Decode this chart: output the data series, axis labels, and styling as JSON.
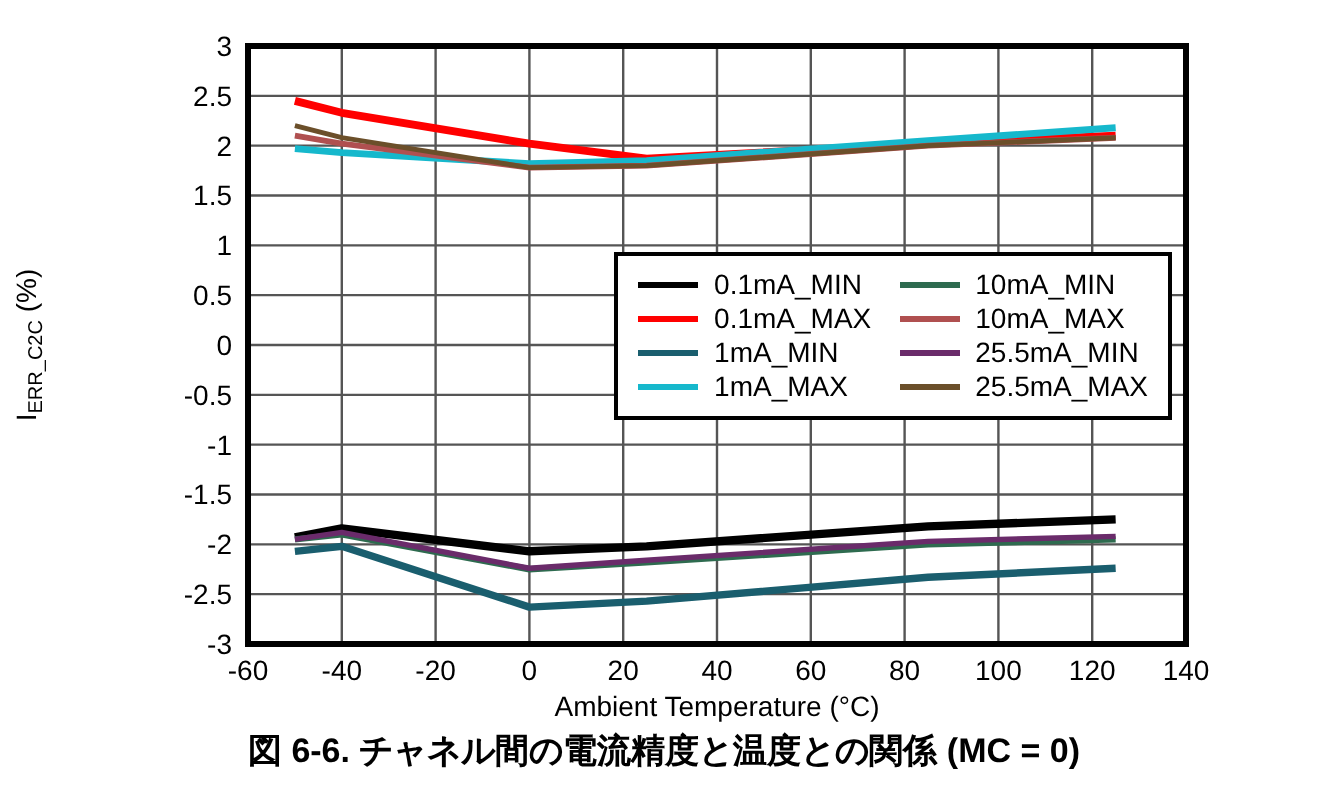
{
  "chart_data": {
    "type": "line",
    "title": "図 6-6. チャネル間の電流精度と温度との関係 (MC = 0)",
    "xlabel": "Ambient Temperature (°C)",
    "ylabel": "I$_{ERR_C2C}$ (%)",
    "x": [
      -50,
      -40,
      0,
      25,
      85,
      125
    ],
    "series": [
      {
        "name": "0.1mA_MIN",
        "color": "#000000",
        "values": [
          -1.93,
          -1.84,
          -2.07,
          -2.02,
          -1.82,
          -1.75
        ]
      },
      {
        "name": "0.1mA_MAX",
        "color": "#ff0000",
        "values": [
          2.45,
          2.33,
          2.02,
          1.87,
          2.02,
          2.1
        ]
      },
      {
        "name": "1mA_MIN",
        "color": "#1a5e6e",
        "values": [
          -2.07,
          -2.02,
          -2.63,
          -2.57,
          -2.33,
          -2.24
        ]
      },
      {
        "name": "1mA_MAX",
        "color": "#16b8cc",
        "values": [
          1.97,
          1.93,
          1.82,
          1.85,
          2.05,
          2.18
        ]
      },
      {
        "name": "10mA_MIN",
        "color": "#2e6b4f",
        "values": [
          -1.95,
          -1.9,
          -2.25,
          -2.18,
          -2.0,
          -1.95
        ]
      },
      {
        "name": "10mA_MAX",
        "color": "#b05050",
        "values": [
          2.1,
          2.02,
          1.78,
          1.8,
          2.0,
          2.08
        ]
      },
      {
        "name": "25.5mA_MIN",
        "color": "#6a2b6a",
        "values": [
          -1.95,
          -1.88,
          -2.24,
          -2.16,
          -1.97,
          -1.92
        ]
      },
      {
        "name": "25.5mA_MAX",
        "color": "#6b4f2a",
        "values": [
          2.2,
          2.08,
          1.78,
          1.8,
          2.0,
          2.08
        ]
      }
    ],
    "xlim": [
      -60,
      140
    ],
    "xticks": [
      -60,
      -40,
      -20,
      0,
      20,
      40,
      60,
      80,
      100,
      120,
      140
    ],
    "ylim": [
      -3,
      3
    ],
    "yticks": [
      -3,
      -2.5,
      -2,
      -1.5,
      -1,
      -0.5,
      0,
      0.5,
      1,
      1.5,
      2,
      2.5,
      3
    ],
    "grid": true,
    "legend": "right",
    "marker": "none",
    "line_style": "solid"
  }
}
